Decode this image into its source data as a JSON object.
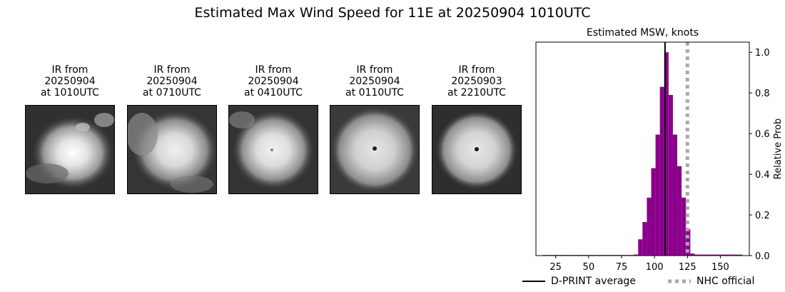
{
  "title": "Estimated Max Wind Speed for 11E at 20250904 1010UTC",
  "panels": [
    {
      "line1": "IR from",
      "line2": "20250904",
      "line3": "at 1010UTC"
    },
    {
      "line1": "IR from",
      "line2": "20250904",
      "line3": "at 0710UTC"
    },
    {
      "line1": "IR from",
      "line2": "20250904",
      "line3": "at 0410UTC"
    },
    {
      "line1": "IR from",
      "line2": "20250904",
      "line3": "at 0110UTC"
    },
    {
      "line1": "IR from",
      "line2": "20250903",
      "line3": "at 2210UTC"
    }
  ],
  "legend": {
    "dprint": "D-PRINT average",
    "nhc": "NHC official"
  },
  "colors": {
    "bars": "#8b008b",
    "dprint_line": "#000000",
    "nhc_line": "#a9a9a9"
  },
  "chart_data": {
    "type": "bar",
    "title": "Estimated MSW, knots",
    "xlabel": "",
    "ylabel": "Relative Prob",
    "xlim": [
      10,
      172
    ],
    "ylim": [
      0,
      1.05
    ],
    "xticks": [
      25,
      50,
      75,
      100,
      125,
      150
    ],
    "yticks": [
      0.0,
      0.2,
      0.4,
      0.6,
      0.8,
      1.0
    ],
    "y_axis_side": "right",
    "bin_width": 3.3,
    "bars": [
      {
        "x": 15,
        "y": 0.003
      },
      {
        "x": 18.3,
        "y": 0.003
      },
      {
        "x": 21.6,
        "y": 0.003
      },
      {
        "x": 24.9,
        "y": 0.003
      },
      {
        "x": 28.2,
        "y": 0.003
      },
      {
        "x": 31.5,
        "y": 0.003
      },
      {
        "x": 34.8,
        "y": 0.003
      },
      {
        "x": 38.1,
        "y": 0.003
      },
      {
        "x": 41.4,
        "y": 0.003
      },
      {
        "x": 44.7,
        "y": 0.003
      },
      {
        "x": 48,
        "y": 0.003
      },
      {
        "x": 51.3,
        "y": 0.003
      },
      {
        "x": 54.6,
        "y": 0.003
      },
      {
        "x": 57.9,
        "y": 0.003
      },
      {
        "x": 61.2,
        "y": 0.003
      },
      {
        "x": 64.5,
        "y": 0.003
      },
      {
        "x": 67.8,
        "y": 0.003
      },
      {
        "x": 71.1,
        "y": 0.003
      },
      {
        "x": 74.4,
        "y": 0.003
      },
      {
        "x": 77.7,
        "y": 0.003
      },
      {
        "x": 81,
        "y": 0.003
      },
      {
        "x": 84.3,
        "y": 0.005
      },
      {
        "x": 87.6,
        "y": 0.08
      },
      {
        "x": 90.9,
        "y": 0.165
      },
      {
        "x": 94.2,
        "y": 0.285
      },
      {
        "x": 97.5,
        "y": 0.43
      },
      {
        "x": 100.8,
        "y": 0.595
      },
      {
        "x": 104.1,
        "y": 0.83
      },
      {
        "x": 107.4,
        "y": 1.0
      },
      {
        "x": 110.7,
        "y": 0.79
      },
      {
        "x": 114,
        "y": 0.595
      },
      {
        "x": 117.3,
        "y": 0.44
      },
      {
        "x": 120.6,
        "y": 0.285
      },
      {
        "x": 123.9,
        "y": 0.13
      },
      {
        "x": 127.2,
        "y": 0.01
      },
      {
        "x": 130.5,
        "y": 0.005
      },
      {
        "x": 133.8,
        "y": 0.005
      },
      {
        "x": 137.1,
        "y": 0.005
      },
      {
        "x": 140.4,
        "y": 0.005
      },
      {
        "x": 143.7,
        "y": 0.005
      },
      {
        "x": 147,
        "y": 0.005
      },
      {
        "x": 150.3,
        "y": 0.005
      },
      {
        "x": 153.6,
        "y": 0.005
      },
      {
        "x": 156.9,
        "y": 0.005
      },
      {
        "x": 160.2,
        "y": 0.005
      },
      {
        "x": 163.5,
        "y": 0.005
      }
    ],
    "dprint_average": 108,
    "nhc_official": 125,
    "legend_position": "bottom"
  }
}
